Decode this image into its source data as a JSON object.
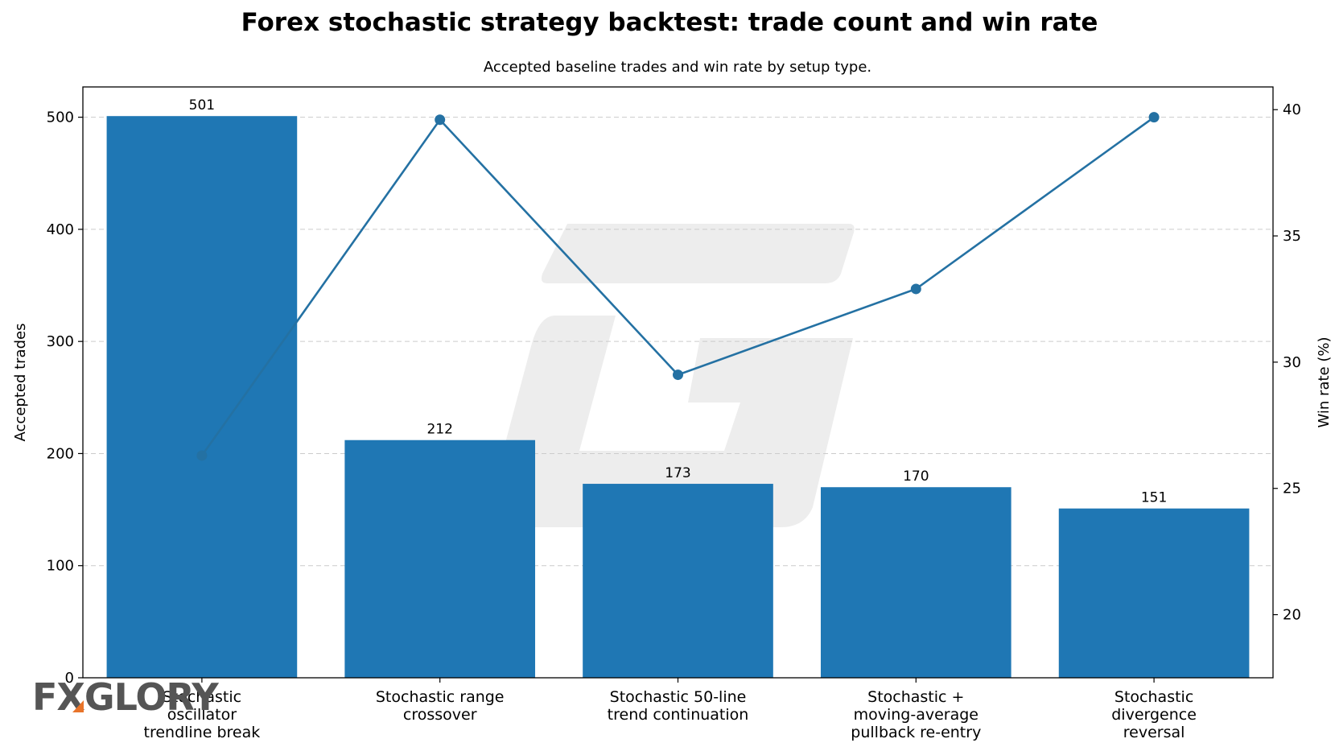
{
  "chart_data": {
    "type": "bar",
    "title": "Forex stochastic strategy backtest: trade count and win rate",
    "subtitle": "Accepted baseline trades and win rate by setup type.",
    "categories": [
      "Stochastic oscillator trendline break",
      "Stochastic range crossover",
      "Stochastic 50-line trend continuation",
      "Stochastic + moving-average pullback re-entry",
      "Stochastic divergence reversal"
    ],
    "category_lines": [
      [
        "Stochastic",
        "oscillator",
        "trendline break"
      ],
      [
        "Stochastic range",
        "crossover"
      ],
      [
        "Stochastic 50-line",
        "trend continuation"
      ],
      [
        "Stochastic +",
        "moving-average",
        "pullback re-entry"
      ],
      [
        "Stochastic",
        "divergence",
        "reversal"
      ]
    ],
    "series": [
      {
        "type": "bar",
        "axis": "left",
        "values": [
          501,
          212,
          173,
          170,
          151
        ],
        "color": "#1f77b4"
      },
      {
        "type": "line",
        "axis": "right",
        "values": [
          26.3,
          39.6,
          29.5,
          32.9,
          39.7
        ],
        "color": "#1f77b4"
      }
    ],
    "ylabel": "Accepted trades",
    "y2label": "Win rate (%)",
    "ylim": [
      0,
      527
    ],
    "y2lim": [
      17.5,
      40.9
    ],
    "yticks": [
      0,
      100,
      200,
      300,
      400,
      500
    ],
    "y2ticks": [
      20,
      25,
      30,
      35,
      40
    ],
    "data_labels": [
      "501",
      "212",
      "173",
      "170",
      "151"
    ],
    "grid": "horizontal dashed",
    "legend": "none"
  },
  "branding": {
    "logo_text": "FXGLORY",
    "logo_color": "#555555",
    "logo_accent": "#e8742a"
  }
}
